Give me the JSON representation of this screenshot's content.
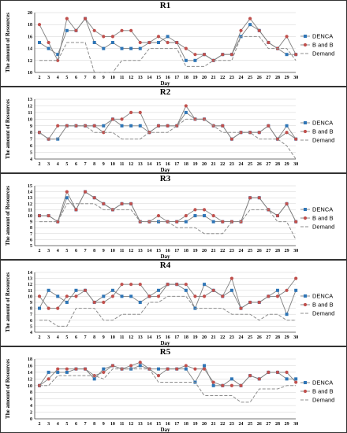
{
  "colors": {
    "DENCA": "#2e75b6",
    "B and B": "#c0504d",
    "Demand": "#8c8c8c",
    "line": "#7f7f7f",
    "grid": "#d0d0d0"
  },
  "chart_data": [
    {
      "type": "line",
      "title": "R1",
      "xlabel": "Day",
      "ylabel": "The amount of Resources",
      "x": [
        2,
        3,
        4,
        5,
        6,
        7,
        8,
        9,
        10,
        11,
        12,
        13,
        14,
        15,
        16,
        17,
        18,
        19,
        20,
        21,
        22,
        23,
        24,
        25,
        26,
        27,
        28,
        29,
        30
      ],
      "ylim": [
        10,
        20
      ],
      "yticks": [
        10,
        12,
        14,
        16,
        18,
        20
      ],
      "grid": true,
      "legend_position": "right",
      "series": [
        {
          "name": "DENCA",
          "values": [
            15,
            14,
            13,
            17,
            17,
            19,
            15,
            14,
            15,
            14,
            14,
            14,
            15,
            15,
            16,
            15,
            12,
            12,
            13,
            12,
            13,
            13,
            16,
            18,
            17,
            15,
            14,
            13,
            13
          ]
        },
        {
          "name": "B and B",
          "values": [
            18,
            15,
            12,
            19,
            17,
            19,
            17,
            16,
            16,
            17,
            17,
            15,
            15,
            16,
            15,
            15,
            14,
            13,
            13,
            12,
            13,
            13,
            17,
            19,
            17,
            15,
            14,
            16,
            13
          ]
        },
        {
          "name": "Demand",
          "values": [
            12,
            12,
            12,
            15,
            15,
            15,
            10,
            10,
            10,
            12,
            12,
            12,
            14,
            14,
            14,
            14,
            11,
            11,
            11,
            12,
            12,
            12,
            16,
            16,
            16,
            14,
            14,
            14,
            12
          ]
        }
      ]
    },
    {
      "type": "line",
      "title": "R2",
      "xlabel": "Day",
      "ylabel": "The amount of Resources",
      "x": [
        2,
        3,
        4,
        5,
        6,
        7,
        8,
        9,
        10,
        11,
        12,
        13,
        14,
        15,
        16,
        17,
        18,
        19,
        20,
        21,
        22,
        23,
        24,
        25,
        26,
        27,
        28,
        29,
        30
      ],
      "ylim": [
        4,
        13
      ],
      "yticks": [
        4,
        5,
        6,
        7,
        8,
        9,
        10,
        11,
        12,
        13
      ],
      "grid": true,
      "legend_position": "right",
      "series": [
        {
          "name": "DENCA",
          "values": [
            8,
            7,
            7,
            9,
            9,
            9,
            9,
            9,
            10,
            9,
            9,
            9,
            8,
            9,
            9,
            9,
            11,
            10,
            10,
            9,
            9,
            7,
            8,
            8,
            8,
            9,
            7,
            9,
            7
          ]
        },
        {
          "name": "B and B",
          "values": [
            8,
            7,
            9,
            9,
            9,
            9,
            9,
            8,
            10,
            10,
            11,
            11,
            8,
            9,
            9,
            9,
            12,
            10,
            10,
            9,
            9,
            7,
            8,
            8,
            8,
            9,
            7,
            8,
            7
          ]
        },
        {
          "name": "Demand",
          "values": [
            8,
            7,
            7,
            9,
            9,
            9,
            8,
            8,
            8,
            7,
            7,
            7,
            8,
            8,
            8,
            9,
            10,
            10,
            10,
            9,
            8,
            8,
            8,
            8,
            7,
            7,
            7,
            6,
            4
          ]
        }
      ]
    },
    {
      "type": "line",
      "title": "R3",
      "xlabel": "Day",
      "ylabel": "The amount of Resources",
      "x": [
        2,
        3,
        4,
        5,
        6,
        7,
        8,
        9,
        10,
        11,
        12,
        13,
        14,
        15,
        16,
        17,
        18,
        19,
        20,
        21,
        22,
        23,
        24,
        25,
        26,
        27,
        28,
        29,
        30
      ],
      "ylim": [
        5,
        15
      ],
      "yticks": [
        5,
        6,
        7,
        8,
        9,
        10,
        11,
        12,
        13,
        14,
        15
      ],
      "grid": true,
      "legend_position": "right",
      "series": [
        {
          "name": "DENCA",
          "values": [
            10,
            10,
            9,
            13,
            11,
            14,
            13,
            12,
            11,
            12,
            12,
            9,
            9,
            9,
            9,
            9,
            9,
            10,
            10,
            9,
            9,
            9,
            9,
            13,
            13,
            11,
            10,
            12,
            9
          ]
        },
        {
          "name": "B and B",
          "values": [
            10,
            10,
            9,
            14,
            11,
            14,
            13,
            12,
            11,
            12,
            12,
            9,
            9,
            10,
            9,
            9,
            10,
            11,
            11,
            10,
            9,
            9,
            9,
            13,
            13,
            11,
            10,
            12,
            9
          ]
        },
        {
          "name": "Demand",
          "values": [
            9,
            9,
            9,
            12,
            12,
            12,
            12,
            11,
            11,
            11,
            11,
            9,
            9,
            9,
            9,
            8,
            8,
            8,
            7,
            7,
            7,
            9,
            9,
            11,
            11,
            11,
            9,
            9,
            6
          ]
        }
      ]
    },
    {
      "type": "line",
      "title": "R4",
      "xlabel": "Day",
      "ylabel": "The amount of Resources",
      "x": [
        2,
        3,
        4,
        5,
        6,
        7,
        8,
        9,
        10,
        11,
        12,
        13,
        14,
        15,
        16,
        17,
        18,
        19,
        20,
        21,
        22,
        23,
        24,
        25,
        26,
        27,
        28,
        29,
        30
      ],
      "ylim": [
        4,
        14
      ],
      "yticks": [
        4,
        5,
        6,
        7,
        8,
        9,
        10,
        11,
        12,
        13,
        14
      ],
      "grid": true,
      "legend_position": "right",
      "series": [
        {
          "name": "DENCA",
          "values": [
            8,
            11,
            10,
            9,
            11,
            11,
            9,
            10,
            11,
            10,
            10,
            9,
            10,
            11,
            12,
            12,
            11,
            8,
            12,
            11,
            10,
            11,
            8,
            9,
            9,
            10,
            11,
            7,
            11
          ]
        },
        {
          "name": "B and B",
          "values": [
            10,
            8,
            8,
            10,
            10,
            11,
            9,
            9,
            10,
            12,
            12,
            12,
            10,
            10,
            12,
            12,
            12,
            10,
            10,
            11,
            10,
            13,
            8,
            9,
            9,
            10,
            10,
            11,
            13
          ]
        },
        {
          "name": "Demand",
          "values": [
            6,
            6,
            5,
            5,
            8,
            8,
            8,
            6,
            6,
            7,
            7,
            7,
            9,
            9,
            10,
            10,
            10,
            8,
            8,
            8,
            8,
            7,
            7,
            7,
            6,
            7,
            7,
            6,
            6
          ]
        }
      ]
    },
    {
      "type": "line",
      "title": "R5",
      "xlabel": "Day",
      "ylabel": "The amount of Resources",
      "x": [
        2,
        3,
        4,
        5,
        6,
        7,
        8,
        9,
        10,
        11,
        12,
        13,
        14,
        15,
        16,
        17,
        18,
        19,
        20,
        21,
        22,
        23,
        24,
        25,
        26,
        27,
        28,
        29,
        30
      ],
      "ylim": [
        0,
        18
      ],
      "yticks": [
        0,
        2,
        4,
        6,
        8,
        10,
        12,
        14,
        16,
        18
      ],
      "grid": true,
      "legend_position": "right",
      "series": [
        {
          "name": "DENCA",
          "values": [
            10,
            14,
            14,
            14,
            15,
            15,
            12,
            15,
            16,
            15,
            15,
            16,
            15,
            15,
            15,
            15,
            15,
            11,
            16,
            10,
            10,
            12,
            10,
            13,
            12,
            14,
            14,
            12,
            12
          ]
        },
        {
          "name": "B and B",
          "values": [
            10,
            12,
            15,
            15,
            15,
            15,
            13,
            14,
            16,
            15,
            16,
            17,
            15,
            13,
            15,
            15,
            16,
            15,
            15,
            11,
            10,
            10,
            10,
            13,
            12,
            14,
            14,
            14,
            11
          ]
        },
        {
          "name": "Demand",
          "values": [
            10,
            10,
            13,
            13,
            13,
            13,
            13,
            12,
            15,
            15,
            15,
            15,
            15,
            11,
            11,
            11,
            11,
            11,
            7,
            7,
            7,
            7,
            5,
            5,
            9,
            9,
            9,
            10,
            10
          ]
        }
      ]
    }
  ]
}
